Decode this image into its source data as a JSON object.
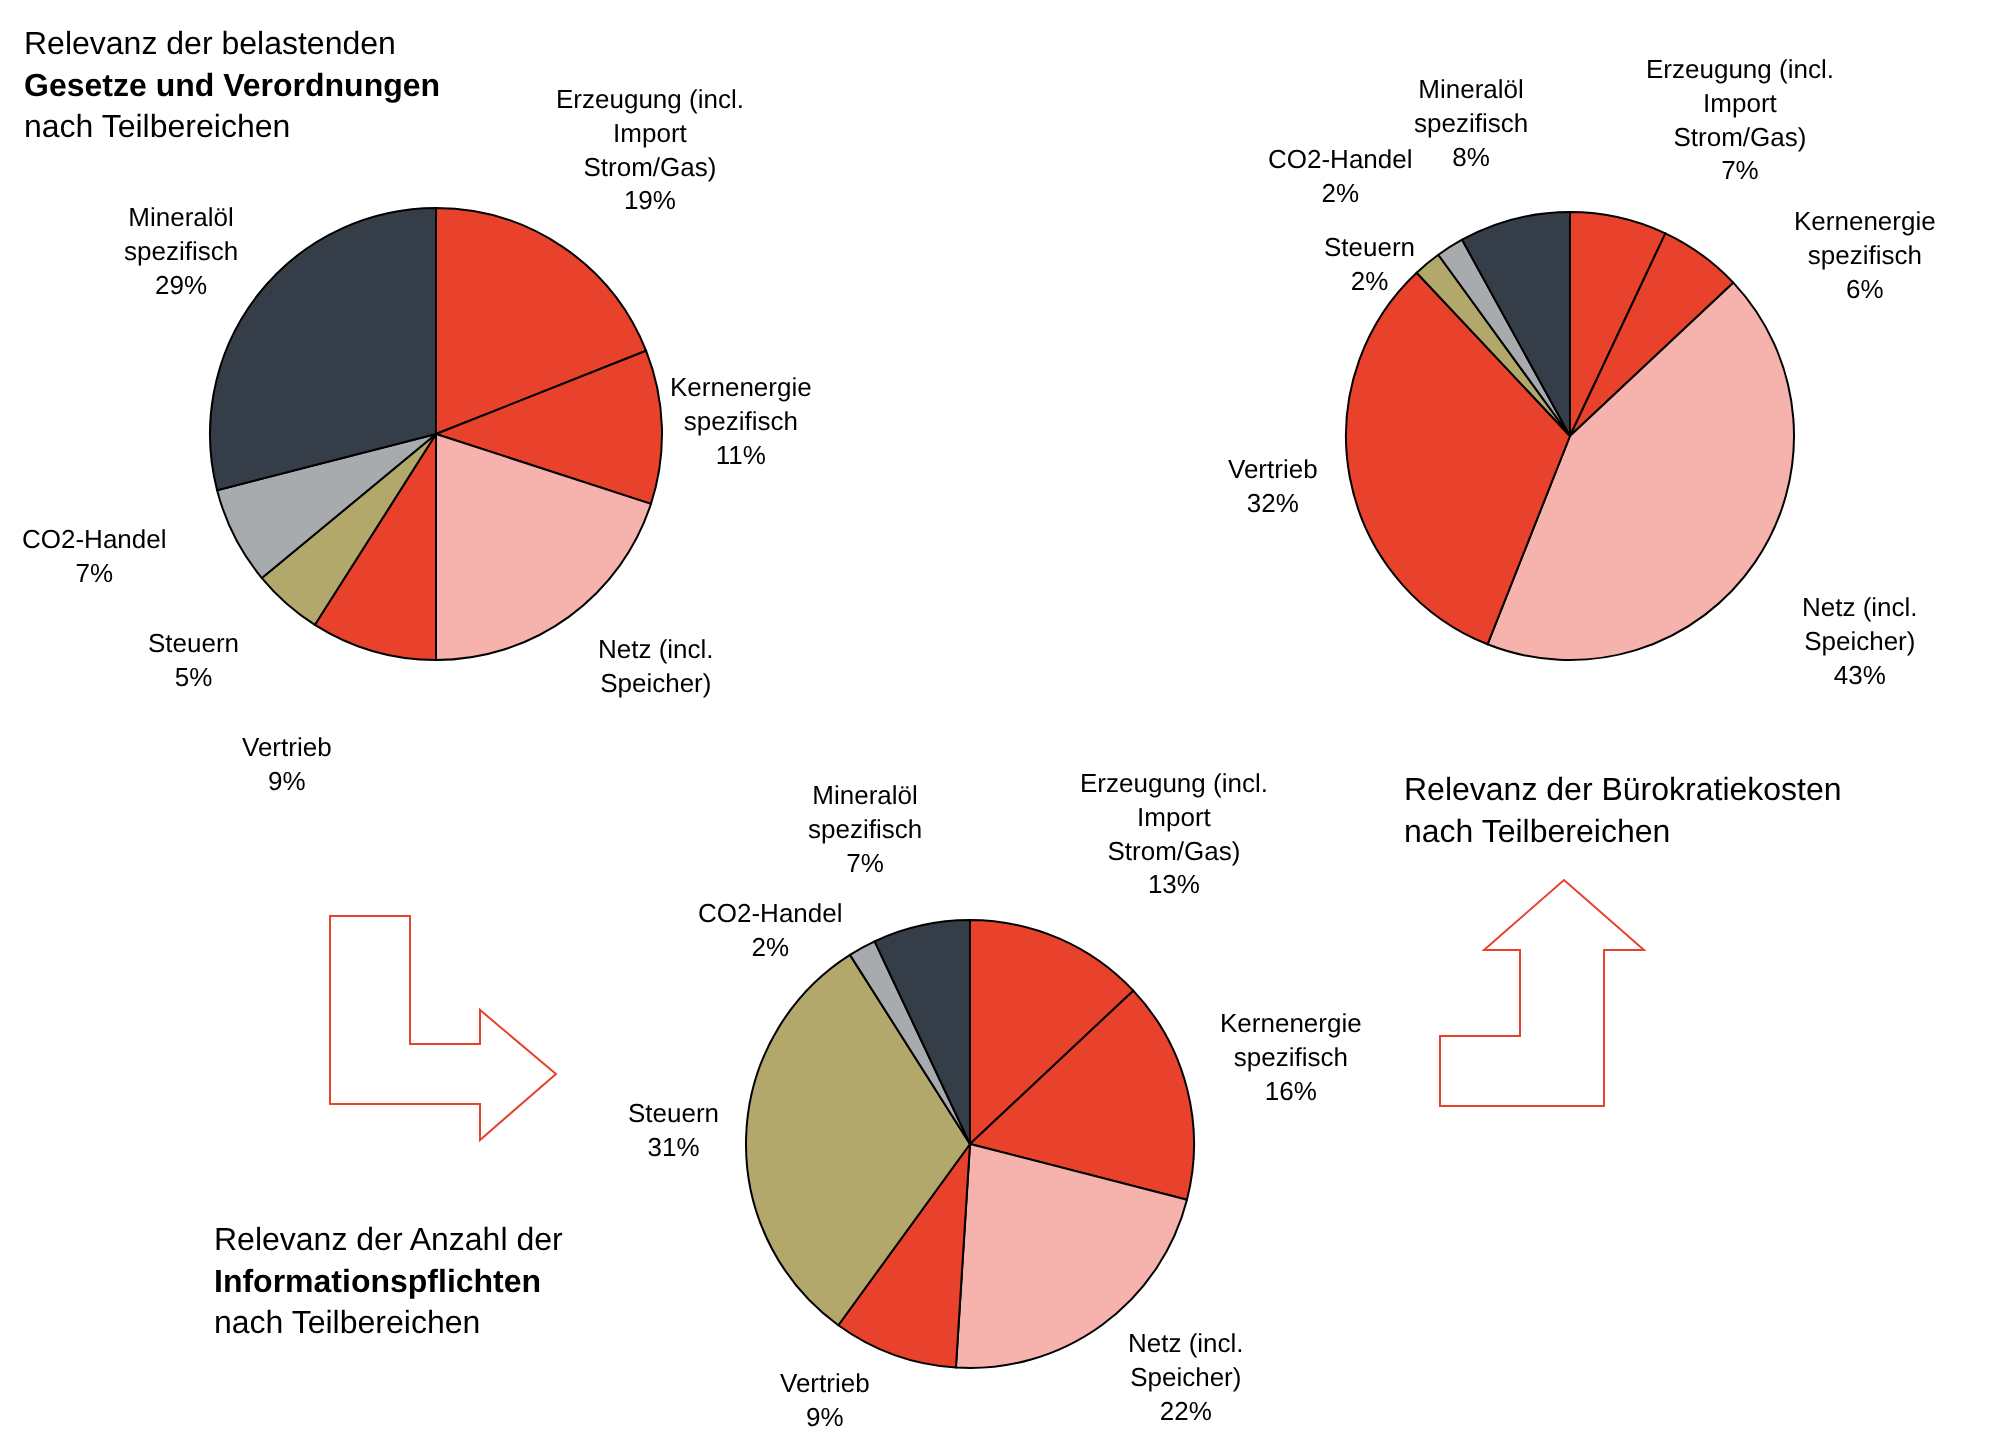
{
  "chart_data": [
    {
      "type": "pie",
      "title": "Relevanz der belastenden\nGesetze und Verordnungen\nnach Teilbereichen",
      "categories": [
        "Erzeugung (incl.\nImport\nStrom/Gas)",
        "Kernenergie\nspezifisch",
        "Netz (incl.\nSpeicher)",
        "Vertrieb",
        "Steuern",
        "CO2-Handel",
        "Mineralöl\nspezifisch"
      ],
      "values": [
        19,
        11,
        20,
        9,
        5,
        7,
        29
      ],
      "value_labels": [
        "19%",
        "11%",
        null,
        "9%",
        "5%",
        "7%",
        "29%"
      ],
      "colors": [
        "#e8412c",
        "#e8412c",
        "#f6b3ad",
        "#e8412c",
        "#b3a86c",
        "#a8abae",
        "#353e48"
      ]
    },
    {
      "type": "pie",
      "title": "Relevanz der Bürokratiekosten\nnach Teilbereichen",
      "categories": [
        "Erzeugung (incl.\nImport\nStrom/Gas)",
        "Kernenergie\nspezifisch",
        "Netz (incl.\nSpeicher)",
        "Vertrieb",
        "Steuern",
        "CO2-Handel",
        "Mineralöl\nspezifisch"
      ],
      "values": [
        7,
        6,
        43,
        32,
        2,
        2,
        8
      ],
      "value_labels": [
        "7%",
        "6%",
        "43%",
        "32%",
        "2%",
        "2%",
        "8%"
      ],
      "colors": [
        "#e8412c",
        "#e8412c",
        "#f6b3ad",
        "#e8412c",
        "#b3a86c",
        "#a8abae",
        "#353e48"
      ]
    },
    {
      "type": "pie",
      "title": "Relevanz der Anzahl der\nInformationspflichten\nnach Teilbereichen",
      "categories": [
        "Erzeugung (incl.\nImport\nStrom/Gas)",
        "Kernenergie\nspezifisch",
        "Netz (incl.\nSpeicher)",
        "Vertrieb",
        "Steuern",
        "CO2-Handel",
        "Mineralöl\nspezifisch"
      ],
      "values": [
        13,
        16,
        22,
        9,
        31,
        2,
        7
      ],
      "value_labels": [
        "13%",
        "16%",
        "22%",
        "9%",
        "31%",
        "2%",
        "7%"
      ],
      "colors": [
        "#e8412c",
        "#e8412c",
        "#f6b3ad",
        "#e8412c",
        "#b3a86c",
        "#a8abae",
        "#353e48"
      ]
    }
  ]
}
